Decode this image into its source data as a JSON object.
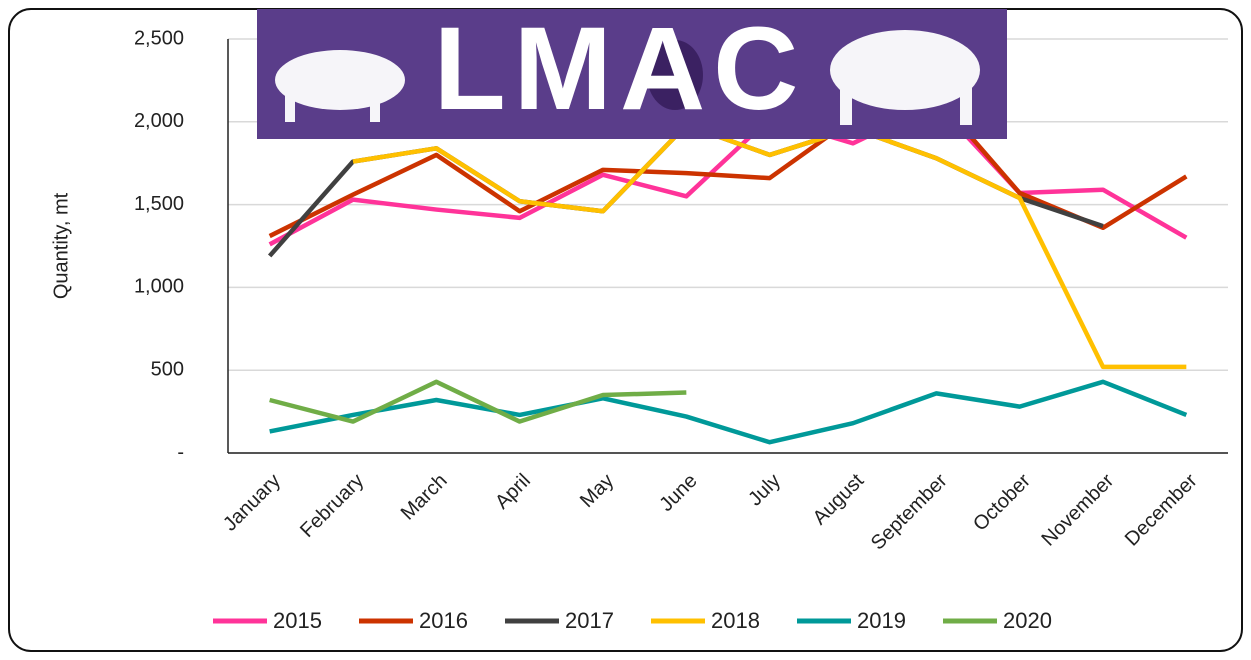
{
  "logo": "LMAC",
  "chart_data": {
    "type": "line",
    "y_label": "Quantity, mt",
    "categories": [
      "January",
      "February",
      "March",
      "April",
      "May",
      "June",
      "July",
      "August",
      "September",
      "October",
      "November",
      "December"
    ],
    "series": [
      {
        "name": "2015",
        "color": "#ff3399",
        "values": [
          1260,
          1530,
          1470,
          1420,
          1680,
          1550,
          2020,
          1870,
          2110,
          1570,
          1590,
          1300
        ]
      },
      {
        "name": "2016",
        "color": "#cc3300",
        "values": [
          1310,
          1560,
          1800,
          1460,
          1710,
          1690,
          1660,
          2020,
          2150,
          1570,
          1360,
          1670
        ]
      },
      {
        "name": "2017",
        "color": "#404040",
        "values": [
          1190,
          1760,
          1840,
          1520,
          1460,
          1980,
          1800,
          1960,
          1780,
          1540,
          1370,
          null
        ]
      },
      {
        "name": "2018",
        "color": "#ffc000",
        "values": [
          null,
          1760,
          1840,
          1520,
          1460,
          1980,
          1800,
          1960,
          1780,
          1540,
          520,
          520
        ]
      },
      {
        "name": "2019",
        "color": "#009999",
        "values": [
          130,
          230,
          320,
          230,
          330,
          220,
          65,
          180,
          360,
          280,
          430,
          230
        ]
      },
      {
        "name": "2020",
        "color": "#70ad47",
        "values": [
          320,
          190,
          430,
          190,
          350,
          365,
          null,
          null,
          null,
          null,
          null,
          null
        ]
      }
    ],
    "ylim": [
      0,
      2500
    ],
    "yticks": [
      {
        "value": 0,
        "label": "-"
      },
      500,
      {
        "value": 1000,
        "label": "1,000"
      },
      {
        "value": 1500,
        "label": "1,500"
      },
      {
        "value": 2000,
        "label": "2,000"
      },
      {
        "value": 2500,
        "label": "2,500"
      }
    ],
    "grid": true,
    "legend": "bottom"
  }
}
